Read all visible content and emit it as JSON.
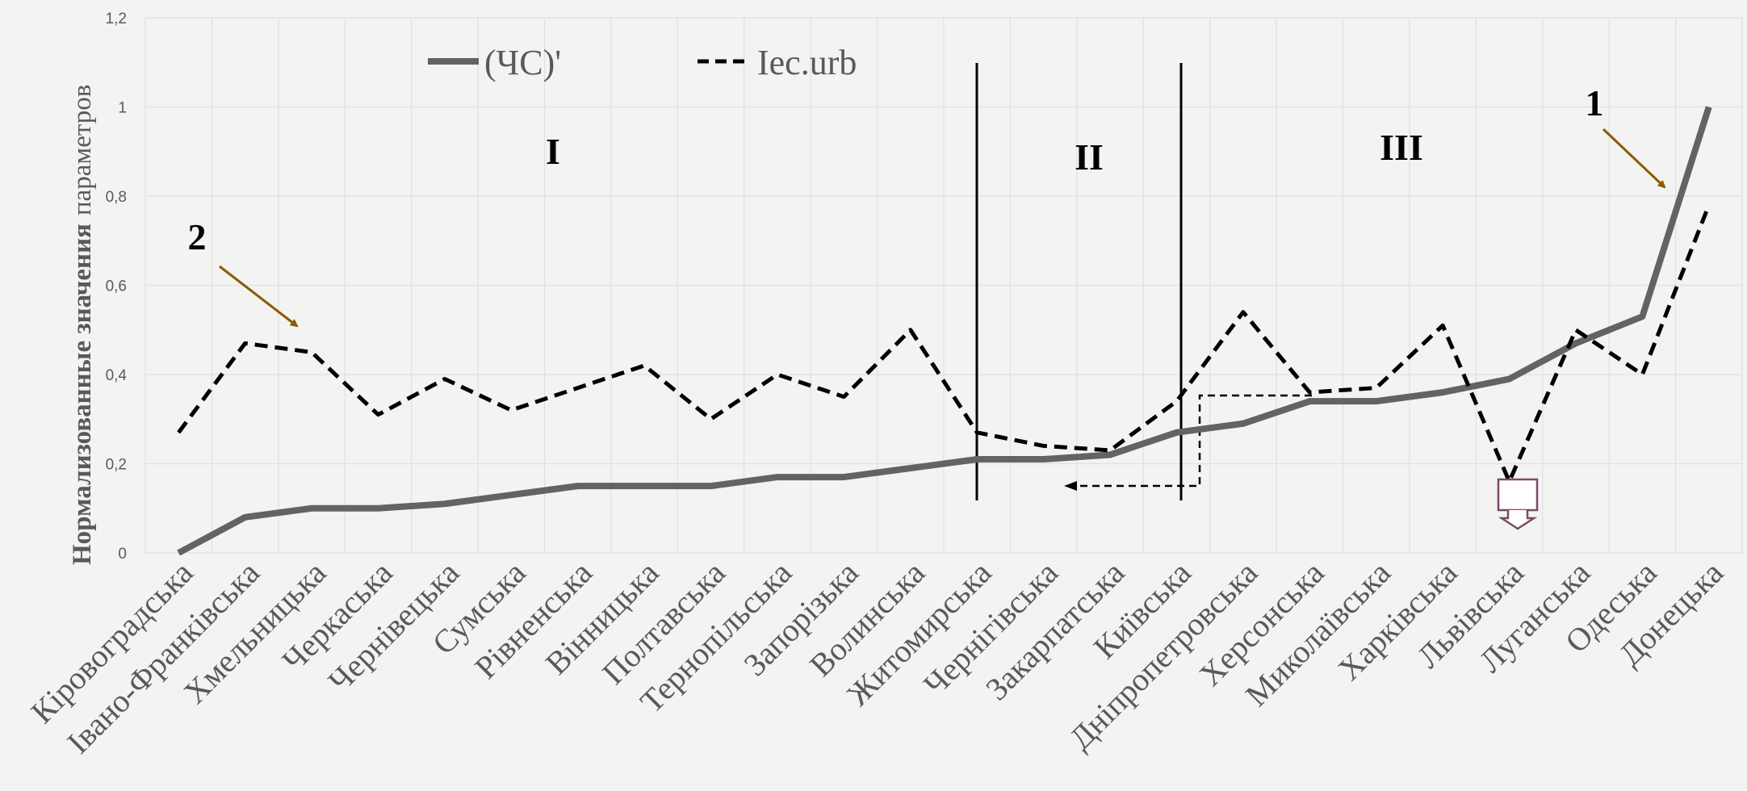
{
  "chart_data": {
    "type": "line",
    "title": "",
    "ylabel_bold": "Нормализованные значения",
    "ylabel_normal": "параметров",
    "xlabel": "",
    "ylim": [
      0,
      1.2
    ],
    "y_ticks": [
      "0",
      "0,2",
      "0,4",
      "0,6",
      "0,8",
      "1",
      "1,2"
    ],
    "grid": true,
    "legend_position": "top-left",
    "categories": [
      "Кіровоградська",
      "Івано-Франківська",
      "Хмельницька",
      "Черкаська",
      "Чернівецька",
      "Сумська",
      "Рівненська",
      "Вінницька",
      "Полтавська",
      "Тернопільська",
      "Запорізька",
      "Волинська",
      "Житомирська",
      "Чернігівська",
      "Закарпатська",
      "Київська",
      "Дніпропетровська",
      "Херсонська",
      "Миколаївська",
      "Харківська",
      "Львівська",
      "Луганська",
      "Одеська",
      "Донецька"
    ],
    "series": [
      {
        "name": "(ЧС)'",
        "style": "solid",
        "color": "#636363",
        "values": [
          0,
          0.08,
          0.1,
          0.1,
          0.11,
          0.13,
          0.15,
          0.15,
          0.15,
          0.17,
          0.17,
          0.19,
          0.21,
          0.21,
          0.22,
          0.27,
          0.29,
          0.34,
          0.34,
          0.36,
          0.39,
          0.47,
          0.53,
          1.0
        ]
      },
      {
        "name": "Iec.urb",
        "style": "dashed",
        "color": "#000000",
        "values": [
          0.27,
          0.47,
          0.45,
          0.31,
          0.39,
          0.32,
          0.37,
          0.42,
          0.3,
          0.4,
          0.35,
          0.5,
          0.27,
          0.24,
          0.23,
          0.34,
          0.54,
          0.36,
          0.37,
          0.51,
          0.16,
          0.5,
          0.4,
          0.78
        ]
      }
    ],
    "zones": [
      "I",
      "II",
      "III"
    ],
    "annotations": [
      "1",
      "2"
    ],
    "arrow_color": "#8b5a00",
    "callout_color": "#7a4a66"
  }
}
